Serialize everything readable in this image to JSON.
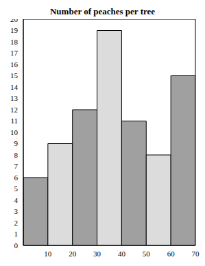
{
  "chart_data": {
    "type": "histogram",
    "title": "Number of peaches per tree",
    "bins": [
      0,
      10,
      20,
      30,
      40,
      50,
      60,
      70
    ],
    "values": [
      6,
      9,
      12,
      19,
      11,
      8,
      15
    ],
    "colors": [
      "#a0a0a0",
      "#dcdcdc",
      "#a0a0a0",
      "#dcdcdc",
      "#a0a0a0",
      "#dcdcdc",
      "#a0a0a0"
    ],
    "xlim": [
      0,
      70
    ],
    "ylim": [
      0,
      20
    ],
    "xticks": [
      10,
      20,
      30,
      40,
      50,
      60,
      70
    ],
    "yticks": [
      0,
      1,
      2,
      3,
      4,
      5,
      6,
      7,
      8,
      9,
      10,
      11,
      12,
      13,
      14,
      15,
      16,
      17,
      18,
      19,
      20
    ],
    "grid": false
  }
}
